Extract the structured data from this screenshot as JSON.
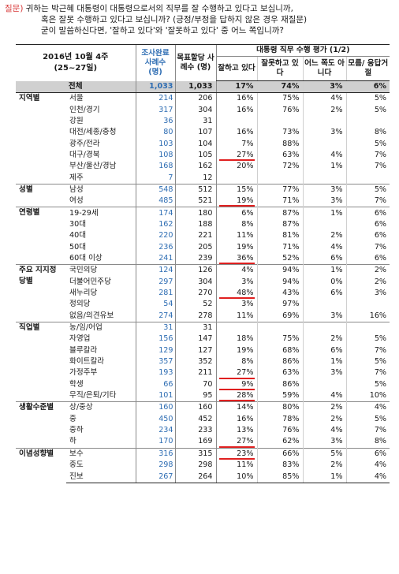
{
  "question": {
    "label": "질문)",
    "line1": " 귀하는 박근혜 대통령이 대통령으로서의 직무를 잘 수행하고 있다고 보십니까,",
    "line2": "혹은 잘못 수행하고 있다고 보십니까? (긍정/부정을 답하지 않은 경우 재질문)",
    "line3": "굳이 말씀하신다면, '잘하고 있다'와 '잘못하고 있다' 중 어느 쪽입니까?"
  },
  "header": {
    "date_line1": "2016년 10월 4주",
    "date_line2": "(25~27일)",
    "col_completed": "조사완료 사례수 (명)",
    "col_target": "목표할당 사례수 (명)",
    "eval_title": "대통령 직무 수행 평가 (1/2)",
    "col_good": "잘하고 있다",
    "col_bad": "잘못하고 있다",
    "col_neither": "어느 쪽도 아니다",
    "col_dk": "모름/ 응답거절"
  },
  "total": {
    "label": "전체",
    "done": "1,033",
    "target": "1,033",
    "good": "17%",
    "bad": "74%",
    "neither": "3%",
    "dk": "6%"
  },
  "groups": [
    {
      "name": "지역별",
      "rows": [
        {
          "label": "서울",
          "done": "214",
          "target": "206",
          "good": "16%",
          "bad": "75%",
          "neither": "4%",
          "dk": "5%",
          "hl": false
        },
        {
          "label": "인천/경기",
          "done": "317",
          "target": "304",
          "good": "16%",
          "bad": "76%",
          "neither": "2%",
          "dk": "5%",
          "hl": false
        },
        {
          "label": "강원",
          "done": "36",
          "target": "31",
          "good": "",
          "bad": "",
          "neither": "",
          "dk": "",
          "hl": false
        },
        {
          "label": "대전/세종/충청",
          "done": "80",
          "target": "107",
          "good": "16%",
          "bad": "73%",
          "neither": "3%",
          "dk": "8%",
          "hl": false
        },
        {
          "label": "광주/전라",
          "done": "103",
          "target": "104",
          "good": "7%",
          "bad": "88%",
          "neither": "",
          "dk": "5%",
          "hl": false
        },
        {
          "label": "대구/경북",
          "done": "108",
          "target": "105",
          "good": "27%",
          "bad": "63%",
          "neither": "4%",
          "dk": "7%",
          "hl": true
        },
        {
          "label": "부산/울산/경남",
          "done": "168",
          "target": "162",
          "good": "20%",
          "bad": "72%",
          "neither": "1%",
          "dk": "7%",
          "hl": false
        },
        {
          "label": "제주",
          "done": "7",
          "target": "12",
          "good": "",
          "bad": "",
          "neither": "",
          "dk": "",
          "hl": false
        }
      ]
    },
    {
      "name": "성별",
      "rows": [
        {
          "label": "남성",
          "done": "548",
          "target": "512",
          "good": "15%",
          "bad": "77%",
          "neither": "3%",
          "dk": "5%",
          "hl": false
        },
        {
          "label": "여성",
          "done": "485",
          "target": "521",
          "good": "19%",
          "bad": "71%",
          "neither": "3%",
          "dk": "7%",
          "hl": true
        }
      ]
    },
    {
      "name": "연령별",
      "rows": [
        {
          "label": "19-29세",
          "done": "174",
          "target": "180",
          "good": "6%",
          "bad": "87%",
          "neither": "1%",
          "dk": "6%",
          "hl": false
        },
        {
          "label": "30대",
          "done": "162",
          "target": "188",
          "good": "8%",
          "bad": "87%",
          "neither": "",
          "dk": "6%",
          "hl": false
        },
        {
          "label": "40대",
          "done": "220",
          "target": "221",
          "good": "11%",
          "bad": "81%",
          "neither": "2%",
          "dk": "6%",
          "hl": false
        },
        {
          "label": "50대",
          "done": "236",
          "target": "205",
          "good": "19%",
          "bad": "71%",
          "neither": "4%",
          "dk": "7%",
          "hl": false
        },
        {
          "label": "60대 이상",
          "done": "241",
          "target": "239",
          "good": "36%",
          "bad": "52%",
          "neither": "6%",
          "dk": "6%",
          "hl": true
        }
      ]
    },
    {
      "name": "주요 지지정당별",
      "rows": [
        {
          "label": "국민의당",
          "done": "124",
          "target": "126",
          "good": "4%",
          "bad": "94%",
          "neither": "1%",
          "dk": "2%",
          "hl": false
        },
        {
          "label": "더불어민주당",
          "done": "297",
          "target": "304",
          "good": "3%",
          "bad": "94%",
          "neither": "0%",
          "dk": "2%",
          "hl": false
        },
        {
          "label": "새누리당",
          "done": "281",
          "target": "270",
          "good": "48%",
          "bad": "43%",
          "neither": "6%",
          "dk": "3%",
          "hl": true
        },
        {
          "label": "정의당",
          "done": "54",
          "target": "52",
          "good": "3%",
          "bad": "97%",
          "neither": "",
          "dk": "",
          "hl": false
        },
        {
          "label": "없음/의견유보",
          "done": "274",
          "target": "278",
          "good": "11%",
          "bad": "69%",
          "neither": "3%",
          "dk": "16%",
          "hl": false
        }
      ]
    },
    {
      "name": "직업별",
      "rows": [
        {
          "label": "농/임/어업",
          "done": "31",
          "target": "31",
          "good": "",
          "bad": "",
          "neither": "",
          "dk": "",
          "hl": false
        },
        {
          "label": "자영업",
          "done": "156",
          "target": "147",
          "good": "18%",
          "bad": "75%",
          "neither": "2%",
          "dk": "5%",
          "hl": false
        },
        {
          "label": "블루칼라",
          "done": "129",
          "target": "127",
          "good": "19%",
          "bad": "68%",
          "neither": "6%",
          "dk": "7%",
          "hl": false
        },
        {
          "label": "화이트칼라",
          "done": "357",
          "target": "352",
          "good": "8%",
          "bad": "86%",
          "neither": "1%",
          "dk": "5%",
          "hl": false
        },
        {
          "label": "가정주부",
          "done": "193",
          "target": "211",
          "good": "27%",
          "bad": "63%",
          "neither": "3%",
          "dk": "7%",
          "hl": true
        },
        {
          "label": "학생",
          "done": "66",
          "target": "70",
          "good": "9%",
          "bad": "86%",
          "neither": "",
          "dk": "5%",
          "hl": true
        },
        {
          "label": "무직/은퇴/기타",
          "done": "101",
          "target": "95",
          "good": "28%",
          "bad": "59%",
          "neither": "4%",
          "dk": "10%",
          "hl": true
        }
      ]
    },
    {
      "name": "생활수준별",
      "rows": [
        {
          "label": "상/중상",
          "done": "160",
          "target": "160",
          "good": "14%",
          "bad": "80%",
          "neither": "2%",
          "dk": "4%",
          "hl": false
        },
        {
          "label": "중",
          "done": "450",
          "target": "452",
          "good": "16%",
          "bad": "78%",
          "neither": "2%",
          "dk": "5%",
          "hl": false
        },
        {
          "label": "중하",
          "done": "234",
          "target": "233",
          "good": "13%",
          "bad": "76%",
          "neither": "4%",
          "dk": "7%",
          "hl": false
        },
        {
          "label": "하",
          "done": "170",
          "target": "169",
          "good": "27%",
          "bad": "62%",
          "neither": "3%",
          "dk": "8%",
          "hl": true
        }
      ]
    },
    {
      "name": "이념성향별",
      "rows": [
        {
          "label": "보수",
          "done": "316",
          "target": "315",
          "good": "23%",
          "bad": "66%",
          "neither": "5%",
          "dk": "6%",
          "hl": true
        },
        {
          "label": "중도",
          "done": "298",
          "target": "298",
          "good": "11%",
          "bad": "83%",
          "neither": "2%",
          "dk": "4%",
          "hl": false
        },
        {
          "label": "진보",
          "done": "267",
          "target": "264",
          "good": "10%",
          "bad": "85%",
          "neither": "1%",
          "dk": "4%",
          "hl": false
        }
      ]
    }
  ]
}
